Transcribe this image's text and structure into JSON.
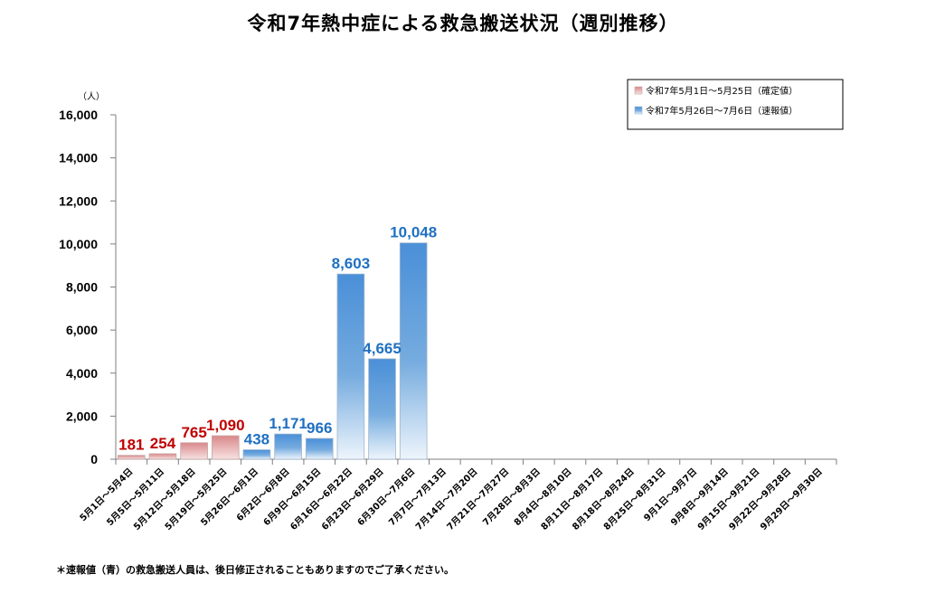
{
  "chart_data": {
    "type": "bar",
    "title": "令和7年熱中症による救急搬送状況（週別推移）",
    "ylabel": "（人）",
    "xlabel": "",
    "ylim": [
      0,
      16000
    ],
    "yticks": [
      0,
      2000,
      4000,
      6000,
      8000,
      10000,
      12000,
      14000,
      16000
    ],
    "ytick_labels": [
      "0",
      "2,000",
      "4,000",
      "6,000",
      "8,000",
      "10,000",
      "12,000",
      "14,000",
      "16,000"
    ],
    "grid": false,
    "legend_position": "top-right",
    "categories": [
      "5月1日～5月4日",
      "5月5日～5月11日",
      "5月12日～5月18日",
      "5月19日～5月25日",
      "5月26日～6月1日",
      "6月2日～6月8日",
      "6月9日～6月15日",
      "6月16日～6月22日",
      "6月23日～6月29日",
      "6月30日～7月6日",
      "7月7日～7月13日",
      "7月14日～7月20日",
      "7月21日～7月27日",
      "7月28日～8月3日",
      "8月4日～8月10日",
      "8月11日～8月17日",
      "8月18日～8月24日",
      "8月25日～8月31日",
      "9月1日～9月7日",
      "9月8日～9月14日",
      "9月15日～9月21日",
      "9月22日～9月28日",
      "9月29日～9月30日"
    ],
    "series": [
      {
        "name": "令和7年5月1日～5月25日（確定値）",
        "color": "#c0504d",
        "label_color": "#c00000",
        "values": [
          181,
          254,
          765,
          1090,
          null,
          null,
          null,
          null,
          null,
          null,
          null,
          null,
          null,
          null,
          null,
          null,
          null,
          null,
          null,
          null,
          null,
          null,
          null
        ],
        "labels": [
          "181",
          "254",
          "765",
          "1,090",
          "",
          "",
          "",
          "",
          "",
          "",
          "",
          "",
          "",
          "",
          "",
          "",
          "",
          "",
          "",
          "",
          "",
          "",
          ""
        ]
      },
      {
        "name": "令和7年5月26日～7月6日（速報値）",
        "color": "#4f8fd6",
        "label_color": "#1f70c1",
        "values": [
          null,
          null,
          null,
          null,
          438,
          1171,
          966,
          8603,
          4665,
          10048,
          null,
          null,
          null,
          null,
          null,
          null,
          null,
          null,
          null,
          null,
          null,
          null,
          null
        ],
        "labels": [
          "",
          "",
          "",
          "",
          "438",
          "1,171",
          "966",
          "8,603",
          "4,665",
          "10,048",
          "",
          "",
          "",
          "",
          "",
          "",
          "",
          "",
          "",
          "",
          "",
          "",
          ""
        ]
      }
    ]
  },
  "footnote": "＊速報値（青）の救急搬送人員は、後日修正されることもありますのでご了承ください。"
}
